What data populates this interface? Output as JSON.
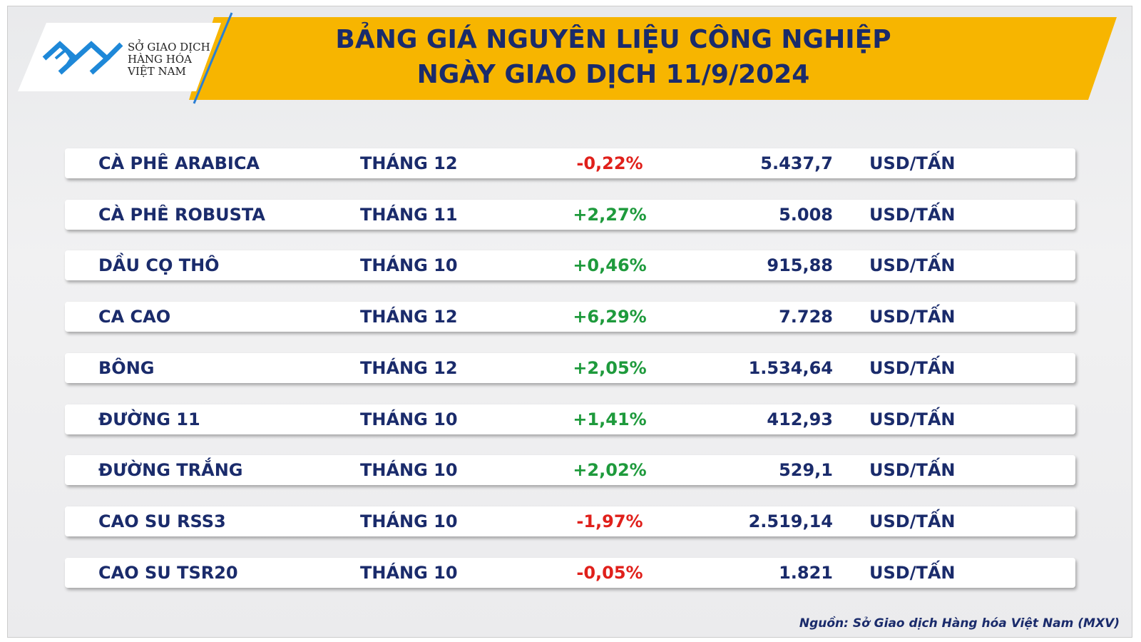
{
  "header": {
    "logo": [
      "SỞ GIAO DỊCH",
      "HÀNG HÓA",
      "VIỆT NAM"
    ],
    "title": [
      "BẢNG GIÁ NGUYÊN LIỆU CÔNG NGHIỆP",
      "NGÀY GIAO DỊCH 11/9/2024"
    ]
  },
  "table": {
    "rows": [
      [
        "CÀ PHÊ ARABICA",
        "THÁNG 12",
        "-0,22%",
        "5.437,7",
        "USD/TẤN"
      ],
      [
        "CÀ PHÊ ROBUSTA",
        "THÁNG 11",
        "+2,27%",
        "5.008",
        "USD/TẤN"
      ],
      [
        "DẦU CỌ THÔ",
        "THÁNG 10",
        "+0,46%",
        "915,88",
        "USD/TẤN"
      ],
      [
        "CA CAO",
        "THÁNG 12",
        "+6,29%",
        "7.728",
        "USD/TẤN"
      ],
      [
        "BÔNG",
        "THÁNG 12",
        "+2,05%",
        "1.534,64",
        "USD/TẤN"
      ],
      [
        "ĐƯỜNG 11",
        "THÁNG 10",
        "+1,41%",
        "412,93",
        "USD/TẤN"
      ],
      [
        "ĐƯỜNG TRẮNG",
        "THÁNG 10",
        "+2,02%",
        "529,1",
        "USD/TẤN"
      ],
      [
        "CAO SU RSS3",
        "THÁNG 10",
        "-1,97%",
        "2.519,14",
        "USD/TẤN"
      ],
      [
        "CAO SU TSR20",
        "THÁNG 10",
        "-0,05%",
        "1.821",
        "USD/TẤN"
      ]
    ]
  },
  "source": "Nguồn: Sở Giao dịch Hàng hóa Việt Nam (MXV)"
}
